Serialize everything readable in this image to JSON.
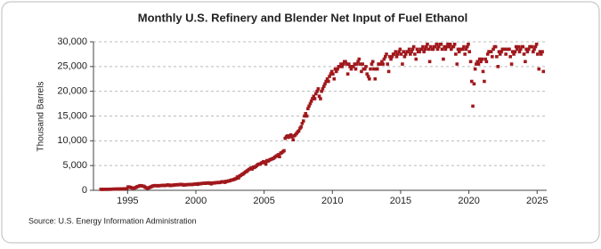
{
  "chart_data": {
    "type": "scatter",
    "title": "Monthly U.S. Refinery and Blender Net Input of Fuel Ethanol",
    "y_label": "Thousand Barrels",
    "source": "Source: U.S. Energy Information Administration",
    "grid": true,
    "xlim": [
      1992.5,
      2025.7
    ],
    "xticks": [
      1995,
      2000,
      2005,
      2010,
      2015,
      2020,
      2025
    ],
    "ylim": [
      0,
      30000
    ],
    "yticks": [
      0,
      {
        "value": 5000,
        "label": "5,000"
      },
      {
        "value": 10000,
        "label": "10,000"
      },
      {
        "value": 15000,
        "label": "15,000"
      },
      {
        "value": 20000,
        "label": "20,000"
      },
      {
        "value": 25000,
        "label": "25,000"
      },
      {
        "value": 30000,
        "label": "30,000"
      }
    ],
    "series": [
      {
        "color": "#a0181c",
        "x": [
          1993.04,
          1993.13,
          1993.21,
          1993.29,
          1993.38,
          1993.46,
          1993.54,
          1993.63,
          1993.71,
          1993.79,
          1993.88,
          1993.96,
          1994.04,
          1994.13,
          1994.21,
          1994.29,
          1994.38,
          1994.46,
          1994.54,
          1994.63,
          1994.71,
          1994.79,
          1994.88,
          1994.96,
          1995.04,
          1995.13,
          1995.21,
          1995.29,
          1995.38,
          1995.46,
          1995.54,
          1995.63,
          1995.71,
          1995.79,
          1995.88,
          1995.96,
          1996.04,
          1996.13,
          1996.21,
          1996.29,
          1996.38,
          1996.46,
          1996.54,
          1996.63,
          1996.71,
          1996.79,
          1996.88,
          1996.96,
          1997.04,
          1997.13,
          1997.21,
          1997.29,
          1997.38,
          1997.46,
          1997.54,
          1997.63,
          1997.71,
          1997.79,
          1997.88,
          1997.96,
          1998.04,
          1998.13,
          1998.21,
          1998.29,
          1998.38,
          1998.46,
          1998.54,
          1998.63,
          1998.71,
          1998.79,
          1998.88,
          1998.96,
          1999.04,
          1999.13,
          1999.21,
          1999.29,
          1999.38,
          1999.46,
          1999.54,
          1999.63,
          1999.71,
          1999.79,
          1999.88,
          1999.96,
          2000.04,
          2000.13,
          2000.21,
          2000.29,
          2000.38,
          2000.46,
          2000.54,
          2000.63,
          2000.71,
          2000.79,
          2000.88,
          2000.96,
          2001.04,
          2001.13,
          2001.21,
          2001.29,
          2001.38,
          2001.46,
          2001.54,
          2001.63,
          2001.71,
          2001.79,
          2001.88,
          2001.96,
          2002.04,
          2002.13,
          2002.21,
          2002.29,
          2002.38,
          2002.46,
          2002.54,
          2002.63,
          2002.71,
          2002.79,
          2002.88,
          2002.96,
          2003.04,
          2003.13,
          2003.21,
          2003.29,
          2003.38,
          2003.46,
          2003.54,
          2003.63,
          2003.71,
          2003.79,
          2003.88,
          2003.96,
          2004.04,
          2004.13,
          2004.21,
          2004.29,
          2004.38,
          2004.46,
          2004.54,
          2004.63,
          2004.71,
          2004.79,
          2004.88,
          2004.96,
          2005.04,
          2005.13,
          2005.21,
          2005.29,
          2005.38,
          2005.46,
          2005.54,
          2005.63,
          2005.71,
          2005.79,
          2005.88,
          2005.96,
          2006.04,
          2006.13,
          2006.21,
          2006.29,
          2006.38,
          2006.46,
          2006.54,
          2006.63,
          2006.71,
          2006.79,
          2006.88,
          2006.96,
          2007.04,
          2007.13,
          2007.21,
          2007.29,
          2007.38,
          2007.46,
          2007.54,
          2007.63,
          2007.71,
          2007.79,
          2007.88,
          2007.96,
          2008.04,
          2008.13,
          2008.21,
          2008.29,
          2008.38,
          2008.46,
          2008.54,
          2008.63,
          2008.71,
          2008.79,
          2008.88,
          2008.96,
          2009.04,
          2009.13,
          2009.21,
          2009.29,
          2009.38,
          2009.46,
          2009.54,
          2009.63,
          2009.71,
          2009.79,
          2009.88,
          2009.96,
          2010.04,
          2010.13,
          2010.21,
          2010.29,
          2010.38,
          2010.46,
          2010.54,
          2010.63,
          2010.71,
          2010.79,
          2010.88,
          2010.96,
          2011.04,
          2011.13,
          2011.21,
          2011.29,
          2011.38,
          2011.46,
          2011.54,
          2011.63,
          2011.71,
          2011.79,
          2011.88,
          2011.96,
          2012.04,
          2012.13,
          2012.21,
          2012.29,
          2012.38,
          2012.46,
          2012.54,
          2012.63,
          2012.71,
          2012.79,
          2012.88,
          2012.96,
          2013.04,
          2013.13,
          2013.21,
          2013.29,
          2013.38,
          2013.46,
          2013.54,
          2013.63,
          2013.71,
          2013.79,
          2013.88,
          2013.96,
          2014.04,
          2014.13,
          2014.21,
          2014.29,
          2014.38,
          2014.46,
          2014.54,
          2014.63,
          2014.71,
          2014.79,
          2014.88,
          2014.96,
          2015.04,
          2015.13,
          2015.21,
          2015.29,
          2015.38,
          2015.46,
          2015.54,
          2015.63,
          2015.71,
          2015.79,
          2015.88,
          2015.96,
          2016.04,
          2016.13,
          2016.21,
          2016.29,
          2016.38,
          2016.46,
          2016.54,
          2016.63,
          2016.71,
          2016.79,
          2016.88,
          2016.96,
          2017.04,
          2017.13,
          2017.21,
          2017.29,
          2017.38,
          2017.46,
          2017.54,
          2017.63,
          2017.71,
          2017.79,
          2017.88,
          2017.96,
          2018.04,
          2018.13,
          2018.21,
          2018.29,
          2018.38,
          2018.46,
          2018.54,
          2018.63,
          2018.71,
          2018.79,
          2018.88,
          2018.96,
          2019.04,
          2019.13,
          2019.21,
          2019.29,
          2019.38,
          2019.46,
          2019.54,
          2019.63,
          2019.71,
          2019.79,
          2019.88,
          2019.96,
          2020.04,
          2020.13,
          2020.21,
          2020.29,
          2020.38,
          2020.46,
          2020.54,
          2020.63,
          2020.71,
          2020.79,
          2020.88,
          2020.96,
          2021.04,
          2021.13,
          2021.21,
          2021.29,
          2021.38,
          2021.46,
          2021.54,
          2021.63,
          2021.71,
          2021.79,
          2021.88,
          2021.96,
          2022.04,
          2022.13,
          2022.21,
          2022.29,
          2022.38,
          2022.46,
          2022.54,
          2022.63,
          2022.71,
          2022.79,
          2022.88,
          2022.96,
          2023.04,
          2023.13,
          2023.21,
          2023.29,
          2023.38,
          2023.46,
          2023.54,
          2023.63,
          2023.71,
          2023.79,
          2023.88,
          2023.96,
          2024.04,
          2024.13,
          2024.21,
          2024.29,
          2024.38,
          2024.46,
          2024.54,
          2024.63,
          2024.71,
          2024.79,
          2024.88,
          2024.96,
          2025.04,
          2025.13,
          2025.21,
          2025.29,
          2025.38,
          2025.46
        ],
        "values": [
          200,
          190,
          210,
          200,
          210,
          200,
          210,
          220,
          210,
          220,
          230,
          240,
          250,
          240,
          260,
          250,
          270,
          260,
          280,
          290,
          300,
          310,
          320,
          330,
          700,
          650,
          600,
          500,
          450,
          450,
          500,
          600,
          750,
          800,
          900,
          950,
          900,
          850,
          800,
          600,
          500,
          400,
          500,
          600,
          700,
          800,
          900,
          950,
          950,
          900,
          950,
          900,
          950,
          950,
          1000,
          1000,
          950,
          1000,
          1050,
          1100,
          1000,
          950,
          1050,
          1000,
          1050,
          1100,
          1100,
          1150,
          1100,
          1150,
          1200,
          1200,
          1100,
          1050,
          1150,
          1100,
          1150,
          1150,
          1200,
          1200,
          1150,
          1200,
          1250,
          1250,
          1300,
          1200,
          1350,
          1300,
          1350,
          1400,
          1400,
          1450,
          1400,
          1450,
          1500,
          1500,
          1400,
          1300,
          1500,
          1450,
          1500,
          1550,
          1550,
          1600,
          1550,
          1600,
          1700,
          1750,
          1700,
          1600,
          1800,
          1800,
          1900,
          1900,
          2000,
          2100,
          2100,
          2200,
          2300,
          2400,
          2700,
          2500,
          2900,
          3000,
          3200,
          3300,
          3500,
          3700,
          3800,
          4000,
          4200,
          4300,
          4500,
          4300,
          4700,
          4600,
          4800,
          5000,
          5200,
          5300,
          5300,
          5500,
          5600,
          5800,
          5600,
          5300,
          6000,
          5900,
          6100,
          6200,
          6300,
          6400,
          6500,
          6700,
          6900,
          7000,
          7200,
          6800,
          7500,
          7600,
          7800,
          8000,
          10500,
          10800,
          11000,
          10700,
          11000,
          11200,
          10800,
          10200,
          11000,
          11200,
          11500,
          11800,
          12000,
          12500,
          12800,
          13500,
          14000,
          15000,
          15500,
          15000,
          16500,
          17000,
          17500,
          18000,
          18500,
          19000,
          18500,
          19500,
          20000,
          20500,
          19000,
          18500,
          20000,
          20500,
          21000,
          21500,
          22000,
          22500,
          22000,
          23000,
          23500,
          24000,
          23500,
          22500,
          24500,
          24000,
          24500,
          25000,
          25000,
          25500,
          25000,
          25500,
          26000,
          26000,
          25500,
          23500,
          25500,
          25000,
          24500,
          25000,
          25000,
          25500,
          24500,
          25500,
          26000,
          26500,
          25500,
          24000,
          25500,
          24500,
          24500,
          25000,
          23500,
          23000,
          22500,
          24500,
          25500,
          26000,
          24500,
          22500,
          24500,
          24500,
          25500,
          25500,
          25500,
          26000,
          25500,
          26500,
          27000,
          27500,
          25500,
          24000,
          27000,
          26500,
          27000,
          27500,
          27500,
          28000,
          27000,
          27500,
          28000,
          28500,
          27500,
          25500,
          28000,
          27000,
          27500,
          28000,
          28000,
          28500,
          27500,
          28000,
          28500,
          29000,
          27500,
          26500,
          28500,
          28000,
          28000,
          28500,
          28500,
          29000,
          28000,
          28500,
          29000,
          29500,
          28500,
          26000,
          29000,
          28500,
          28500,
          29000,
          29000,
          29500,
          28500,
          29000,
          29500,
          29500,
          28500,
          26500,
          29000,
          28500,
          29000,
          29500,
          29000,
          29500,
          28500,
          29000,
          29000,
          29500,
          27500,
          25500,
          28500,
          28000,
          28500,
          28500,
          28500,
          29000,
          27500,
          28500,
          29000,
          29500,
          28000,
          26000,
          22000,
          17000,
          21500,
          24500,
          25500,
          26000,
          25500,
          26500,
          26000,
          26500,
          24000,
          22000,
          26500,
          26000,
          27500,
          28000,
          28000,
          28000,
          27000,
          28500,
          29000,
          29000,
          27000,
          25000,
          28000,
          27500,
          28000,
          28500,
          28500,
          28500,
          27500,
          28500,
          28500,
          28500,
          27000,
          25500,
          28000,
          27500,
          28000,
          29000,
          28500,
          29000,
          28000,
          28500,
          29000,
          29000,
          27500,
          26000,
          28500,
          28000,
          28500,
          29000,
          29000,
          29000,
          28000,
          28500,
          29000,
          29500,
          27500,
          24500,
          28000,
          27500,
          28000,
          24000
        ]
      }
    ]
  }
}
